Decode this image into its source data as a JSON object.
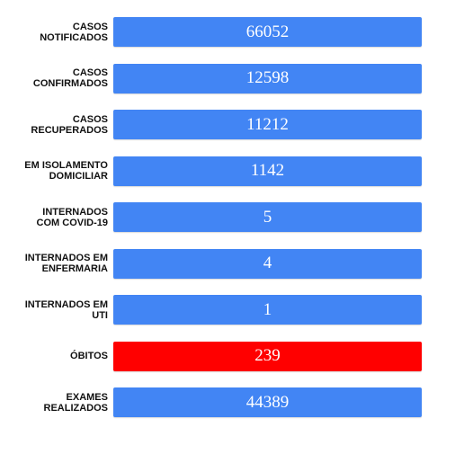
{
  "rows": [
    {
      "label": [
        "CASOS",
        "NOTIFICADOS"
      ],
      "value": 66052,
      "color": "#4285f4"
    },
    {
      "label": [
        "CASOS",
        "CONFIRMADOS"
      ],
      "value": 12598,
      "color": "#4285f4"
    },
    {
      "label": [
        "CASOS",
        "RECUPERADOS"
      ],
      "value": 11212,
      "color": "#4285f4"
    },
    {
      "label": [
        "EM ISOLAMENTO",
        "DOMICILIAR"
      ],
      "value": 1142,
      "color": "#4285f4"
    },
    {
      "label": [
        "INTERNADOS",
        "COM COVID-19"
      ],
      "value": 5,
      "color": "#4285f4"
    },
    {
      "label": [
        "INTERNADOS EM",
        "ENFERMARIA"
      ],
      "value": 4,
      "color": "#4285f4"
    },
    {
      "label": [
        "INTERNADOS EM",
        "UTI"
      ],
      "value": 1,
      "color": "#4285f4"
    },
    {
      "label": [
        "ÓBITOS"
      ],
      "value": 239,
      "color": "#ff0000"
    },
    {
      "label": [
        "EXAMES",
        "REALIZADOS"
      ],
      "value": 44389,
      "color": "#4285f4"
    }
  ]
}
